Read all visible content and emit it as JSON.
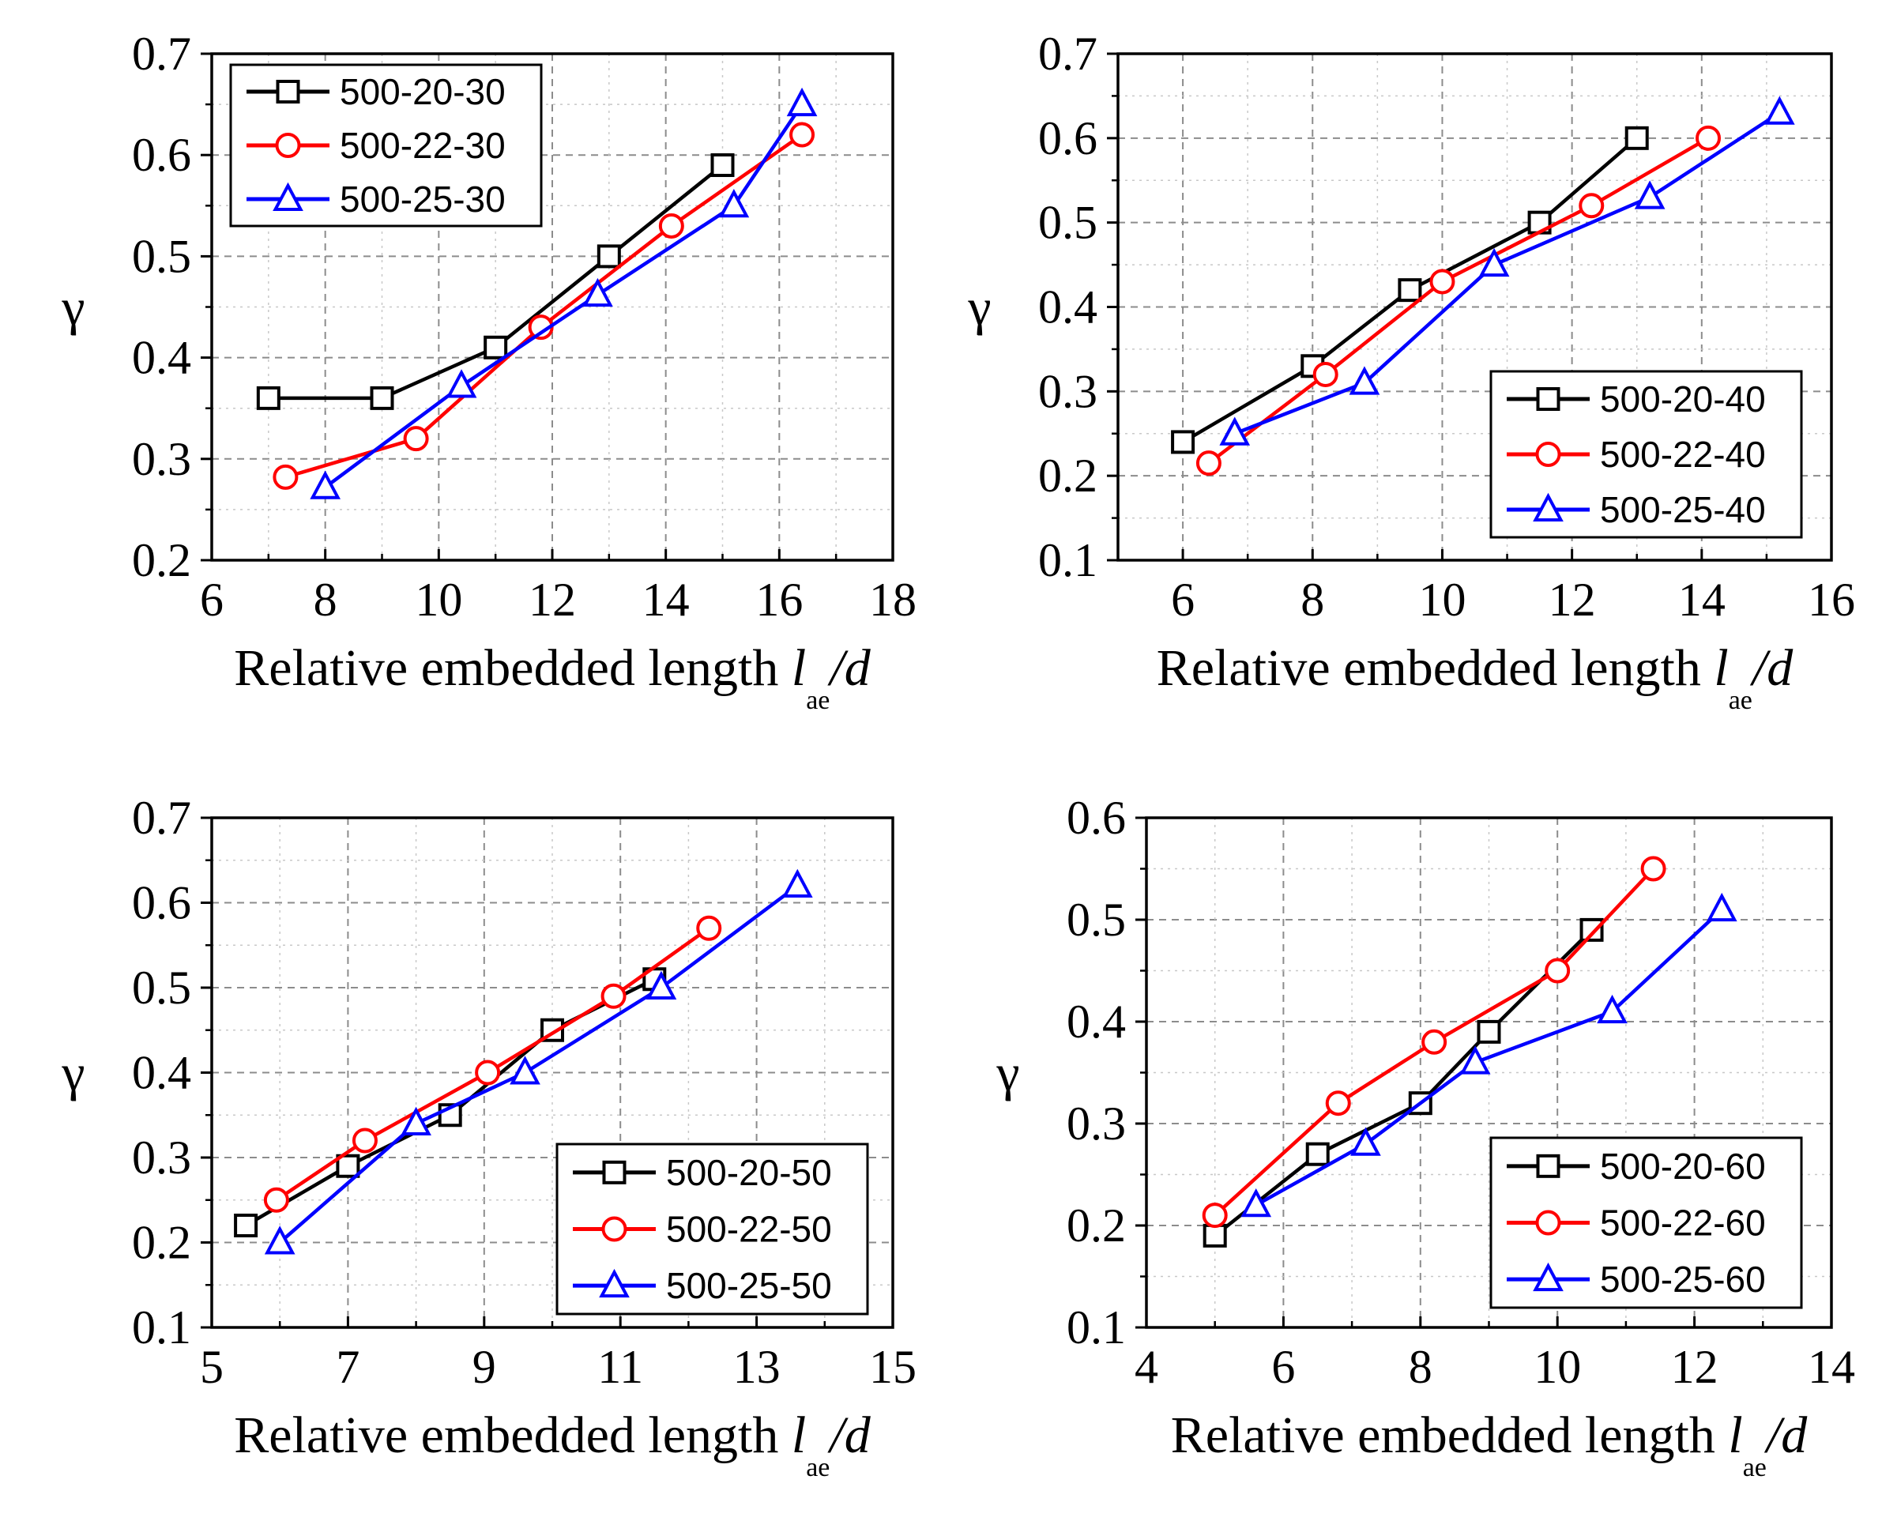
{
  "chart_data": [
    {
      "type": "line",
      "ylabel": "γ",
      "xlabel_prefix": "Relative embedded length ",
      "xlabel_var": "l",
      "xlabel_sub": "ae",
      "xlabel_suffix": "/d",
      "xlim": [
        6,
        18
      ],
      "ylim": [
        0.2,
        0.7
      ],
      "xticks": [
        "6",
        "8",
        "10",
        "12",
        "14",
        "16",
        "18"
      ],
      "yticks": [
        "0.2",
        "0.3",
        "0.4",
        "0.5",
        "0.6",
        "0.7"
      ],
      "xminor": 1,
      "yminor": 0.05,
      "grid": true,
      "legend_position": "top-left",
      "series": [
        {
          "name": "500-20-30",
          "color": "#000000",
          "marker": "square",
          "x": [
            7,
            9,
            11,
            13,
            15
          ],
          "y": [
            0.36,
            0.36,
            0.41,
            0.5,
            0.59
          ]
        },
        {
          "name": "500-22-30",
          "color": "#ff0000",
          "marker": "circle",
          "x": [
            7.3,
            9.6,
            11.8,
            14.1,
            16.4
          ],
          "y": [
            0.282,
            0.32,
            0.43,
            0.53,
            0.62
          ]
        },
        {
          "name": "500-25-30",
          "color": "#0000ff",
          "marker": "triangle",
          "x": [
            8,
            10.4,
            12.8,
            15.2,
            16.4
          ],
          "y": [
            0.272,
            0.372,
            0.462,
            0.55,
            0.65
          ]
        }
      ]
    },
    {
      "type": "line",
      "ylabel": "γ",
      "xlabel_prefix": "Relative embedded length ",
      "xlabel_var": "l",
      "xlabel_sub": "ae",
      "xlabel_suffix": "/d",
      "xlim": [
        5,
        16
      ],
      "ylim": [
        0.1,
        0.7
      ],
      "xticks": [
        "6",
        "8",
        "10",
        "12",
        "14",
        "16"
      ],
      "xtick_values": [
        6,
        8,
        10,
        12,
        14,
        16
      ],
      "yticks": [
        "0.1",
        "0.2",
        "0.3",
        "0.4",
        "0.5",
        "0.6",
        "0.7"
      ],
      "xminor": 1,
      "yminor": 0.05,
      "grid": true,
      "legend_position": "bottom-right",
      "series": [
        {
          "name": "500-20-40",
          "color": "#000000",
          "marker": "square",
          "x": [
            6,
            8,
            9.5,
            11.5,
            13
          ],
          "y": [
            0.24,
            0.33,
            0.42,
            0.5,
            0.6
          ]
        },
        {
          "name": "500-22-40",
          "color": "#ff0000",
          "marker": "circle",
          "x": [
            6.4,
            8.2,
            10,
            12.3,
            14.1
          ],
          "y": [
            0.215,
            0.32,
            0.43,
            0.52,
            0.6
          ]
        },
        {
          "name": "500-25-40",
          "color": "#0000ff",
          "marker": "triangle",
          "x": [
            6.8,
            8.8,
            10.8,
            13.2,
            15.2
          ],
          "y": [
            0.25,
            0.31,
            0.45,
            0.53,
            0.63
          ]
        }
      ]
    },
    {
      "type": "line",
      "ylabel": "γ",
      "xlabel_prefix": "Relative embedded length ",
      "xlabel_var": "l",
      "xlabel_sub": "ae",
      "xlabel_suffix": "/d",
      "xlim": [
        5,
        15
      ],
      "ylim": [
        0.1,
        0.7
      ],
      "xticks": [
        "5",
        "7",
        "9",
        "11",
        "13",
        "15"
      ],
      "yticks": [
        "0.1",
        "0.2",
        "0.3",
        "0.4",
        "0.5",
        "0.6",
        "0.7"
      ],
      "xminor": 1,
      "yminor": 0.05,
      "grid": true,
      "legend_position": "bottom-right",
      "series": [
        {
          "name": "500-20-50",
          "color": "#000000",
          "marker": "square",
          "x": [
            5.5,
            7,
            8.5,
            10,
            11.5
          ],
          "y": [
            0.22,
            0.29,
            0.35,
            0.45,
            0.51
          ]
        },
        {
          "name": "500-22-50",
          "color": "#ff0000",
          "marker": "circle",
          "x": [
            5.95,
            7.25,
            9.05,
            10.9,
            12.3
          ],
          "y": [
            0.25,
            0.32,
            0.4,
            0.49,
            0.57
          ]
        },
        {
          "name": "500-25-50",
          "color": "#0000ff",
          "marker": "triangle",
          "x": [
            6,
            8,
            9.6,
            11.6,
            13.6
          ],
          "y": [
            0.2,
            0.34,
            0.4,
            0.5,
            0.62
          ]
        }
      ]
    },
    {
      "type": "line",
      "ylabel": "γ",
      "xlabel_prefix": "Relative embedded length ",
      "xlabel_var": "l",
      "xlabel_sub": "ae",
      "xlabel_suffix": "/d",
      "xlim": [
        4,
        14
      ],
      "ylim": [
        0.1,
        0.6
      ],
      "xticks": [
        "4",
        "6",
        "8",
        "10",
        "12",
        "14"
      ],
      "yticks": [
        "0.1",
        "0.2",
        "0.3",
        "0.4",
        "0.5",
        "0.6"
      ],
      "xminor": 1,
      "yminor": 0.05,
      "grid": true,
      "legend_position": "bottom-right",
      "series": [
        {
          "name": "500-20-60",
          "color": "#000000",
          "marker": "square",
          "x": [
            5,
            6.5,
            8,
            9,
            10.5
          ],
          "y": [
            0.19,
            0.27,
            0.32,
            0.39,
            0.49
          ]
        },
        {
          "name": "500-22-60",
          "color": "#ff0000",
          "marker": "circle",
          "x": [
            5,
            6.8,
            8.2,
            10,
            11.4
          ],
          "y": [
            0.21,
            0.32,
            0.38,
            0.45,
            0.55
          ]
        },
        {
          "name": "500-25-60",
          "color": "#0000ff",
          "marker": "triangle",
          "x": [
            5.6,
            7.2,
            8.8,
            10.8,
            12.4
          ],
          "y": [
            0.22,
            0.28,
            0.36,
            0.41,
            0.51
          ]
        }
      ]
    }
  ]
}
